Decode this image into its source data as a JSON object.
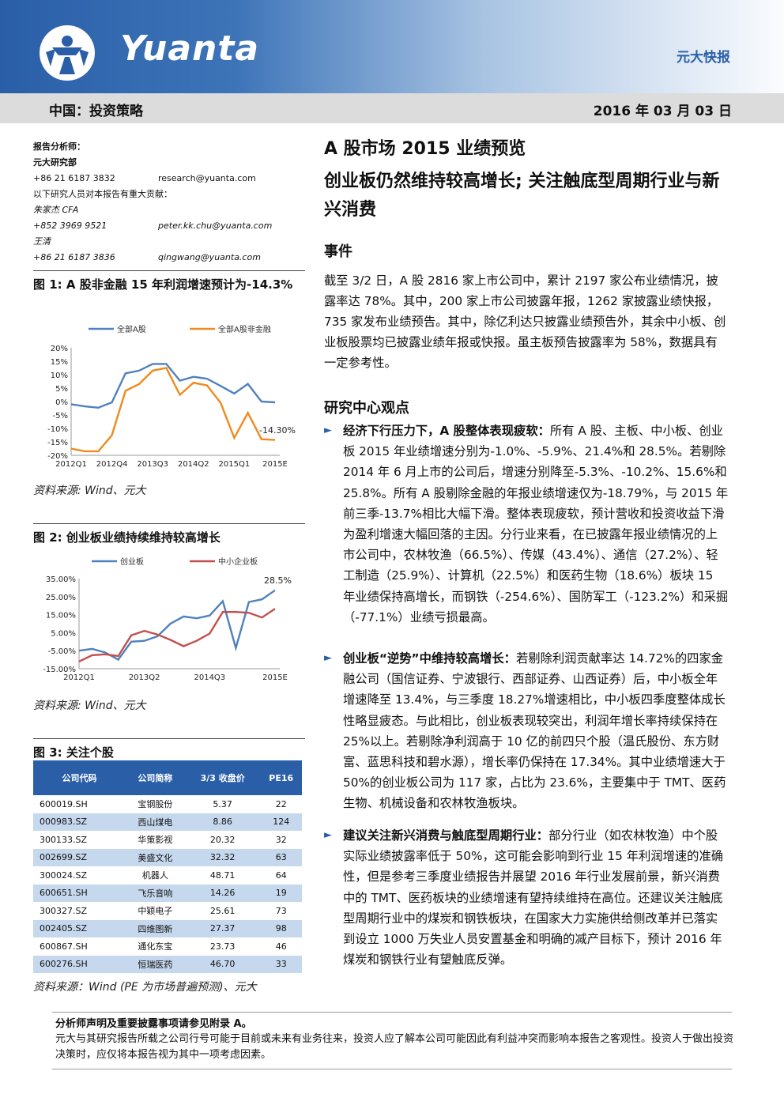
{
  "header": {
    "logo_text": "Yuanta",
    "report_type": "元大快报",
    "section": "中国：投资策略",
    "date": "2016 年 03 月 03 日"
  },
  "contacts": {
    "analyst_label": "报告分析师：",
    "dept": "元大研究部",
    "dept_phone": "+86 21 6187 3832",
    "dept_email": "research@yuanta.com",
    "contrib_label": "以下研究人员对本报告有重大贡献：",
    "p1_name": "朱家杰 CFA",
    "p1_phone": "+852 3969 9521",
    "p1_email": "peter.kk.chu@yuanta.com",
    "p2_name": "王清",
    "p2_phone": "+86 21 6187 3836",
    "p2_email": "qingwang@yuanta.com"
  },
  "fig1": {
    "title": "图 1: A 股非金融 15 年利润增速预计为-14.3%",
    "source": "资料来源: Wind、元大"
  },
  "fig2": {
    "title": "图 2: 创业板业绩持续维持较高增长",
    "source": "资料来源: Wind、元大"
  },
  "fig3": {
    "title": "图 3: 关注个股",
    "source": "资料来源：Wind (PE 为市场普遍预测)、元大",
    "columns": [
      "公司代码",
      "公司简称",
      "3/3 收盘价",
      "PE16"
    ],
    "rows": [
      [
        "600019.SH",
        "宝钢股份",
        "5.37",
        "22"
      ],
      [
        "000983.SZ",
        "西山煤电",
        "8.86",
        "124"
      ],
      [
        "300133.SZ",
        "华策影视",
        "20.32",
        "32"
      ],
      [
        "002699.SZ",
        "美盛文化",
        "32.32",
        "63"
      ],
      [
        "300024.SZ",
        "机器人",
        "48.71",
        "64"
      ],
      [
        "600651.SH",
        "飞乐音响",
        "14.26",
        "19"
      ],
      [
        "300327.SZ",
        "中颖电子",
        "25.61",
        "73"
      ],
      [
        "002405.SZ",
        "四维图新",
        "27.37",
        "98"
      ],
      [
        "600867.SH",
        "通化东宝",
        "23.73",
        "46"
      ],
      [
        "600276.SH",
        "恒瑞医药",
        "46.70",
        "33"
      ]
    ]
  },
  "chart_data": [
    {
      "type": "line",
      "legend": [
        "全部A股",
        "全部A股非金融"
      ],
      "legend_position": "top",
      "x_ticks": [
        "2012Q1",
        "2012Q4",
        "2013Q3",
        "2014Q2",
        "2015Q1",
        "2015E"
      ],
      "y_ticks": [
        "20%",
        "15%",
        "10%",
        "5%",
        "0%",
        "-5%",
        "-10%",
        "-15%",
        "-20%"
      ],
      "ylim": [
        -20,
        20
      ],
      "annotation": "-14.30%",
      "series": [
        {
          "name": "全部A股",
          "color": "#4f81bd",
          "values": [
            -1,
            -1.8,
            -2.3,
            -0.3,
            10.5,
            11.5,
            14,
            14,
            7.8,
            9.2,
            8.5,
            5.8,
            3,
            6.6,
            0,
            -0.3
          ]
        },
        {
          "name": "全部A股非金融",
          "color": "#f08a1c",
          "values": [
            -17.5,
            -18.5,
            -18.5,
            -12.5,
            4,
            6.5,
            11.5,
            12.5,
            2.5,
            7,
            6,
            -0.5,
            -13.5,
            -4.2,
            -14,
            -14.3
          ]
        }
      ]
    },
    {
      "type": "line",
      "legend": [
        "创业板",
        "中小企业板"
      ],
      "legend_position": "top",
      "x_ticks": [
        "2012Q1",
        "2013Q2",
        "2014Q3",
        "2015E"
      ],
      "y_ticks": [
        "35.00%",
        "25.00%",
        "15.00%",
        "5.00%",
        "-5.00%",
        "-15.00%"
      ],
      "ylim": [
        -15,
        35
      ],
      "annotation": "28.5%",
      "series": [
        {
          "name": "创业板",
          "color": "#4f81bd",
          "values": [
            -5,
            -4,
            -6,
            -10,
            0,
            0.5,
            3,
            10,
            14,
            13,
            14.5,
            22.5,
            -3.5,
            22,
            23.5,
            28.5
          ]
        },
        {
          "name": "中小企业板",
          "color": "#c0504d",
          "values": [
            -11,
            -7.5,
            -7,
            -8,
            3.5,
            6,
            4,
            1,
            -2.5,
            0.5,
            4.5,
            16.5,
            16.5,
            16,
            13.4,
            18.3
          ]
        }
      ]
    }
  ],
  "main": {
    "title": "A 股市场 2015 业绩预览",
    "subtitle": "创业板仍然维持较高增长; 关注触底型周期行业与新兴消费",
    "event_heading": "事件",
    "event_text": "截至 3/2 日，A 股 2816 家上市公司中，累计 2197 家公布业绩情况，披露率达 78%。其中，200 家上市公司披露年报，1262 家披露业绩快报，735 家发布业绩预告。其中，除亿利达只披露业绩预告外，其余中小板、创业板股票均已披露业绩年报或快报。虽主板预告披露率为 58%，数据具有一定参考性。",
    "view_heading": "研究中心观点",
    "b1_lead": "经济下行压力下，A 股整体表现疲软：",
    "b1_text": "所有 A 股、主板、中小板、创业板 2015 年业绩增速分别为-1.0%、-5.9%、21.4%和 28.5%。若剔除 2014 年 6 月上市的公司后，增速分别降至-5.3%、-10.2%、15.6%和 25.8%。所有 A 股剔除金融的年报业绩增速仅为-18.79%，与 2015 年前三季-13.7%相比大幅下滑。整体表现疲软，预计营收和投资收益下滑为盈利增速大幅回落的主因。分行业来看，在已披露年报业绩情况的上市公司中，农林牧渔（66.5%）、传媒（43.4%）、通信（27.2%）、轻工制造（25.9%）、计算机（22.5%）和医药生物（18.6%）板块 15 年业绩保持高增长，而钢铁（-254.6%）、国防军工（-123.2%）和采掘（-77.1%）业绩亏损最高。",
    "b2_lead": "创业板“逆势”中维持较高增长：",
    "b2_text": "若剔除利润贡献率达 14.72%的四家金融公司（国信证券、宁波银行、西部证券、山西证券）后，中小板全年增速降至 13.4%，与三季度 18.27%增速相比，中小板四季度整体成长性略显疲态。与此相比，创业板表现较突出，利润年增长率持续保持在 25%以上。若剔除净利润高于 10 亿的前四只个股（温氏股份、东方财富、蓝思科技和碧水源），增长率仍保持在 17.34%。其中业绩增速大于 50%的创业板公司为 117 家，占比为 23.6%，主要集中于 TMT、医药生物、机械设备和农林牧渔板块。",
    "b3_lead": "建议关注新兴消费与触底型周期行业：",
    "b3_text": "部分行业（如农林牧渔）中个股实际业绩披露率低于 50%，这可能会影响到行业 15 年利润增速的准确性，但是参考三季度业绩报告并展望 2016 年行业发展前景，新兴消费中的 TMT、医药板块的业绩增速有望持续维持在高位。还建议关注触底型周期行业中的煤炭和钢铁板块，在国家大力实施供给侧改革并已落实到设立 1000 万失业人员安置基金和明确的减产目标下，预计 2016 年煤炭和钢铁行业有望触底反弹。"
  },
  "footer": {
    "heading": "分析师声明及重要披露事项请参见附录 A。",
    "text": "元大与其研究报告所载之公司行号可能于目前或未来有业务往来，投资人应了解本公司可能因此有利益冲突而影响本报告之客观性。投资人于做出投资决策时，应仅将本报告视为其中一项考虑因素。"
  }
}
